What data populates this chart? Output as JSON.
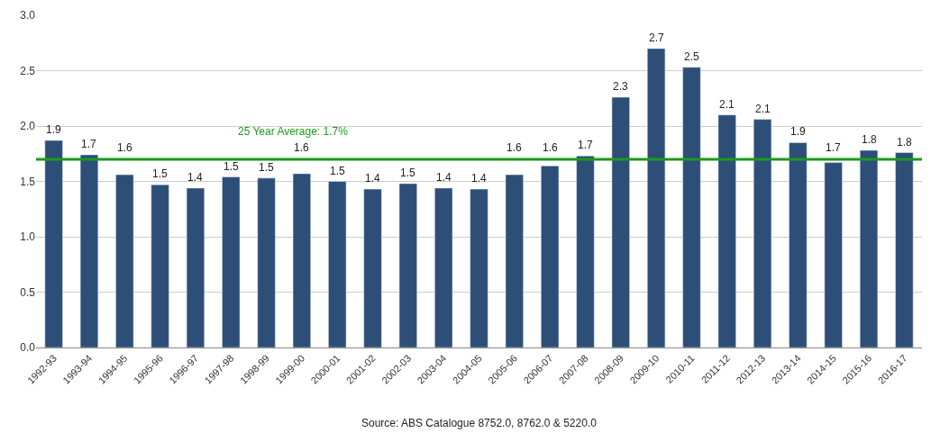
{
  "chart_data": {
    "type": "bar",
    "categories": [
      "1992-93",
      "1993-94",
      "1994-95",
      "1995-96",
      "1996-97",
      "1997-98",
      "1998-99",
      "1999-00",
      "2000-01",
      "2001-02",
      "2002-03",
      "2003-04",
      "2004-05",
      "2005-06",
      "2006-07",
      "2007-08",
      "2008-09",
      "2009-10",
      "2010-11",
      "2011-12",
      "2012-13",
      "2013-14",
      "2014-15",
      "2015-16",
      "2016-17"
    ],
    "values": [
      1.87,
      1.74,
      1.56,
      1.47,
      1.44,
      1.54,
      1.53,
      1.57,
      1.5,
      1.43,
      1.48,
      1.44,
      1.43,
      1.56,
      1.64,
      1.73,
      2.26,
      2.7,
      2.53,
      2.1,
      2.06,
      1.85,
      1.67,
      1.78,
      1.76
    ],
    "value_labels": [
      "1.9",
      "1.7",
      "1.6",
      "1.5",
      "1.4",
      "1.5",
      "1.5",
      "1.6",
      "1.5",
      "1.4",
      "1.5",
      "1.4",
      "1.4",
      "1.6",
      "1.6",
      "1.7",
      "2.3",
      "2.7",
      "2.5",
      "2.1",
      "2.1",
      "1.9",
      "1.7",
      "1.8",
      "1.8"
    ],
    "color": "#2d4f77",
    "ylim": [
      0,
      3
    ],
    "yticks": [
      {
        "value": 0,
        "label": "0.0"
      },
      {
        "value": 0.5,
        "label": "0.5"
      },
      {
        "value": 1,
        "label": "1.0"
      },
      {
        "value": 1.5,
        "label": "1.5"
      },
      {
        "value": 2,
        "label": "2.0"
      },
      {
        "value": 2.5,
        "label": "2.5"
      },
      {
        "value": 3,
        "label": "3.0"
      }
    ],
    "grid": "y",
    "ref_lines": [
      {
        "axis": "y",
        "value": 1.7,
        "label": "25 Year Average: 1.7%",
        "color": "#1a9a1a"
      }
    ],
    "annotations": [
      "Source: ABS Catalogue 8752.0, 8762.0 & 5220.0"
    ]
  }
}
